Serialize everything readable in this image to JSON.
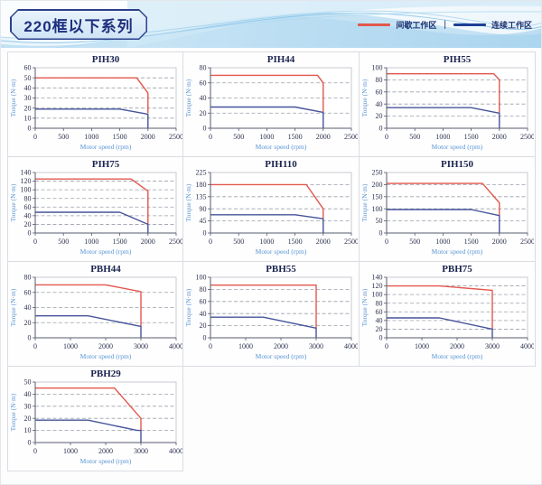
{
  "header": {
    "title": "220框以下系列"
  },
  "legend": {
    "intermittent": "间歇工作区",
    "separator": "|",
    "continuous": "连续工作区",
    "intermittent_color": "#e2574c",
    "continuous_color": "#1e3f94"
  },
  "axis_defaults": {
    "xlabel": "Motor speed (rpm)",
    "ylabel": "Torque (N·m)"
  },
  "colors": {
    "intermittent_curve": "#e2574c",
    "continuous_curve": "#46549a",
    "grid_line": "#9aa0ab",
    "axis_line": "#555b6e"
  },
  "grid_layout": {
    "columns": 3,
    "rows": [
      3,
      3,
      3,
      1
    ]
  },
  "chart_data": [
    {
      "type": "line",
      "title": "PIH30",
      "xlabel": "Motor speed (rpm)",
      "ylabel": "Torque (N·m)",
      "xlim": [
        0,
        2500
      ],
      "xticks": [
        0,
        500,
        1000,
        1500,
        2000,
        2500
      ],
      "ylim": [
        0,
        60
      ],
      "yticks": [
        0,
        10,
        20,
        30,
        40,
        50,
        60
      ],
      "grid": "dashed-horizontal",
      "legend_position": "none",
      "series": [
        {
          "name": "间歇工作区",
          "color": "#e2574c",
          "points": [
            [
              0,
              50
            ],
            [
              1800,
              50
            ],
            [
              2000,
              35
            ],
            [
              2000,
              15
            ]
          ]
        },
        {
          "name": "连续工作区",
          "color": "#46549a",
          "points": [
            [
              0,
              19
            ],
            [
              1500,
              19
            ],
            [
              2000,
              14
            ],
            [
              2000,
              0
            ]
          ]
        }
      ]
    },
    {
      "type": "line",
      "title": "PIH44",
      "xlabel": "Motor speed (rpm)",
      "ylabel": "Torque (N·m)",
      "xlim": [
        0,
        2500
      ],
      "xticks": [
        0,
        500,
        1000,
        1500,
        2000,
        2500
      ],
      "ylim": [
        0,
        80
      ],
      "yticks": [
        0,
        20,
        40,
        60,
        80
      ],
      "grid": "dashed-horizontal",
      "legend_position": "none",
      "series": [
        {
          "name": "间歇工作区",
          "color": "#e2574c",
          "points": [
            [
              0,
              70
            ],
            [
              1900,
              70
            ],
            [
              2000,
              60
            ],
            [
              2000,
              21
            ]
          ]
        },
        {
          "name": "连续工作区",
          "color": "#46549a",
          "points": [
            [
              0,
              28
            ],
            [
              1500,
              28
            ],
            [
              2000,
              21
            ],
            [
              2000,
              0
            ]
          ]
        }
      ]
    },
    {
      "type": "line",
      "title": "PIH55",
      "xlabel": "Motor speed (rpm)",
      "ylabel": "Torque (N·m)",
      "xlim": [
        0,
        2500
      ],
      "xticks": [
        0,
        500,
        1000,
        1500,
        2000,
        2500
      ],
      "ylim": [
        0,
        100
      ],
      "yticks": [
        0,
        20,
        40,
        60,
        80,
        100
      ],
      "grid": "dashed-horizontal",
      "legend_position": "none",
      "series": [
        {
          "name": "间歇工作区",
          "color": "#e2574c",
          "points": [
            [
              0,
              90
            ],
            [
              1900,
              90
            ],
            [
              2000,
              80
            ],
            [
              2000,
              25
            ]
          ]
        },
        {
          "name": "连续工作区",
          "color": "#46549a",
          "points": [
            [
              0,
              34
            ],
            [
              1500,
              34
            ],
            [
              2000,
              25
            ],
            [
              2000,
              0
            ]
          ]
        }
      ]
    },
    {
      "type": "line",
      "title": "PIH75",
      "xlabel": "Motor speed (rpm)",
      "ylabel": "Torque (N·m)",
      "xlim": [
        0,
        2500
      ],
      "xticks": [
        0,
        500,
        1000,
        1500,
        2000,
        2500
      ],
      "ylim": [
        0,
        140
      ],
      "yticks": [
        0,
        20,
        40,
        60,
        80,
        100,
        120,
        140
      ],
      "grid": "dashed-horizontal",
      "legend_position": "none",
      "series": [
        {
          "name": "间歇工作区",
          "color": "#e2574c",
          "points": [
            [
              0,
              125
            ],
            [
              1700,
              125
            ],
            [
              2000,
              97
            ],
            [
              2000,
              20
            ]
          ]
        },
        {
          "name": "连续工作区",
          "color": "#46549a",
          "points": [
            [
              0,
              48
            ],
            [
              1500,
              48
            ],
            [
              2000,
              20
            ],
            [
              2000,
              0
            ]
          ]
        }
      ]
    },
    {
      "type": "line",
      "title": "PIH110",
      "xlabel": "Motor speed (rpm)",
      "ylabel": "Torque (N·m)",
      "xlim": [
        0,
        2500
      ],
      "xticks": [
        0,
        500,
        1000,
        1500,
        2000,
        2500
      ],
      "ylim": [
        0,
        225
      ],
      "yticks": [
        0,
        45,
        90,
        135,
        180,
        225
      ],
      "grid": "dashed-horizontal",
      "legend_position": "none",
      "series": [
        {
          "name": "间歇工作区",
          "color": "#e2574c",
          "points": [
            [
              0,
              180
            ],
            [
              1700,
              180
            ],
            [
              2000,
              90
            ],
            [
              2000,
              53
            ]
          ]
        },
        {
          "name": "连续工作区",
          "color": "#46549a",
          "points": [
            [
              0,
              68
            ],
            [
              1500,
              68
            ],
            [
              2000,
              53
            ],
            [
              2000,
              0
            ]
          ]
        }
      ]
    },
    {
      "type": "line",
      "title": "PIH150",
      "xlabel": "Motor speed (rpm)",
      "ylabel": "Torque (N·m)",
      "xlim": [
        0,
        2500
      ],
      "xticks": [
        0,
        500,
        1000,
        1500,
        2000,
        2500
      ],
      "ylim": [
        0,
        250
      ],
      "yticks": [
        0,
        50,
        100,
        150,
        200,
        250
      ],
      "grid": "dashed-horizontal",
      "legend_position": "none",
      "series": [
        {
          "name": "间歇工作区",
          "color": "#e2574c",
          "points": [
            [
              0,
              205
            ],
            [
              1700,
              205
            ],
            [
              2000,
              125
            ],
            [
              2000,
              72
            ]
          ]
        },
        {
          "name": "连续工作区",
          "color": "#46549a",
          "points": [
            [
              0,
              97
            ],
            [
              1500,
              97
            ],
            [
              2000,
              72
            ],
            [
              2000,
              0
            ]
          ]
        }
      ]
    },
    {
      "type": "line",
      "title": "PBH44",
      "xlabel": "Motor speed (rpm)",
      "ylabel": "Torque (N·m)",
      "xlim": [
        0,
        4000
      ],
      "xticks": [
        0,
        1000,
        2000,
        3000,
        4000
      ],
      "ylim": [
        0,
        80
      ],
      "yticks": [
        0,
        20,
        40,
        60,
        80
      ],
      "grid": "dashed-horizontal",
      "legend_position": "none",
      "series": [
        {
          "name": "间歇工作区",
          "color": "#e2574c",
          "points": [
            [
              0,
              70
            ],
            [
              2000,
              70
            ],
            [
              3000,
              61
            ],
            [
              3000,
              15
            ]
          ]
        },
        {
          "name": "连续工作区",
          "color": "#46549a",
          "points": [
            [
              0,
              29
            ],
            [
              1500,
              29
            ],
            [
              3000,
              15
            ],
            [
              3000,
              0
            ]
          ]
        }
      ]
    },
    {
      "type": "line",
      "title": "PBH55",
      "xlabel": "Motor speed (rpm)",
      "ylabel": "Torque (N·m)",
      "xlim": [
        0,
        4000
      ],
      "xticks": [
        0,
        1000,
        2000,
        3000,
        4000
      ],
      "ylim": [
        0,
        100
      ],
      "yticks": [
        0,
        20,
        40,
        60,
        80,
        100
      ],
      "grid": "dashed-horizontal",
      "legend_position": "none",
      "series": [
        {
          "name": "间歇工作区",
          "color": "#e2574c",
          "points": [
            [
              0,
              87
            ],
            [
              3000,
              87
            ],
            [
              3000,
              16
            ]
          ]
        },
        {
          "name": "连续工作区",
          "color": "#46549a",
          "points": [
            [
              0,
              34
            ],
            [
              1500,
              34
            ],
            [
              3000,
              16
            ],
            [
              3000,
              0
            ]
          ]
        }
      ]
    },
    {
      "type": "line",
      "title": "PBH75",
      "xlabel": "Motor speed (rpm)",
      "ylabel": "Torque (N·m)",
      "xlim": [
        0,
        4000
      ],
      "xticks": [
        0,
        1000,
        2000,
        3000,
        4000
      ],
      "ylim": [
        0,
        140
      ],
      "yticks": [
        0,
        20,
        40,
        60,
        80,
        100,
        120,
        140
      ],
      "grid": "dashed-horizontal",
      "legend_position": "none",
      "series": [
        {
          "name": "间歇工作区",
          "color": "#e2574c",
          "points": [
            [
              0,
              120
            ],
            [
              1500,
              120
            ],
            [
              3000,
              110
            ],
            [
              3000,
              20
            ]
          ]
        },
        {
          "name": "连续工作区",
          "color": "#46549a",
          "points": [
            [
              0,
              46
            ],
            [
              1500,
              46
            ],
            [
              3000,
              20
            ],
            [
              3000,
              0
            ]
          ]
        }
      ]
    },
    {
      "type": "line",
      "title": "PBH29",
      "xlabel": "Motor speed (rpm)",
      "ylabel": "Torque (N·m)",
      "xlim": [
        0,
        4000
      ],
      "xticks": [
        0,
        1000,
        2000,
        3000,
        4000
      ],
      "ylim": [
        0,
        50
      ],
      "yticks": [
        0,
        10,
        20,
        30,
        40,
        50
      ],
      "grid": "dashed-horizontal",
      "legend_position": "none",
      "series": [
        {
          "name": "间歇工作区",
          "color": "#e2574c",
          "points": [
            [
              0,
              45
            ],
            [
              2250,
              45
            ],
            [
              3000,
              20
            ],
            [
              3000,
              10
            ]
          ]
        },
        {
          "name": "连续工作区",
          "color": "#46549a",
          "points": [
            [
              0,
              18.5
            ],
            [
              1500,
              18.5
            ],
            [
              2900,
              10
            ],
            [
              3000,
              10
            ],
            [
              3000,
              0
            ]
          ]
        }
      ]
    }
  ]
}
